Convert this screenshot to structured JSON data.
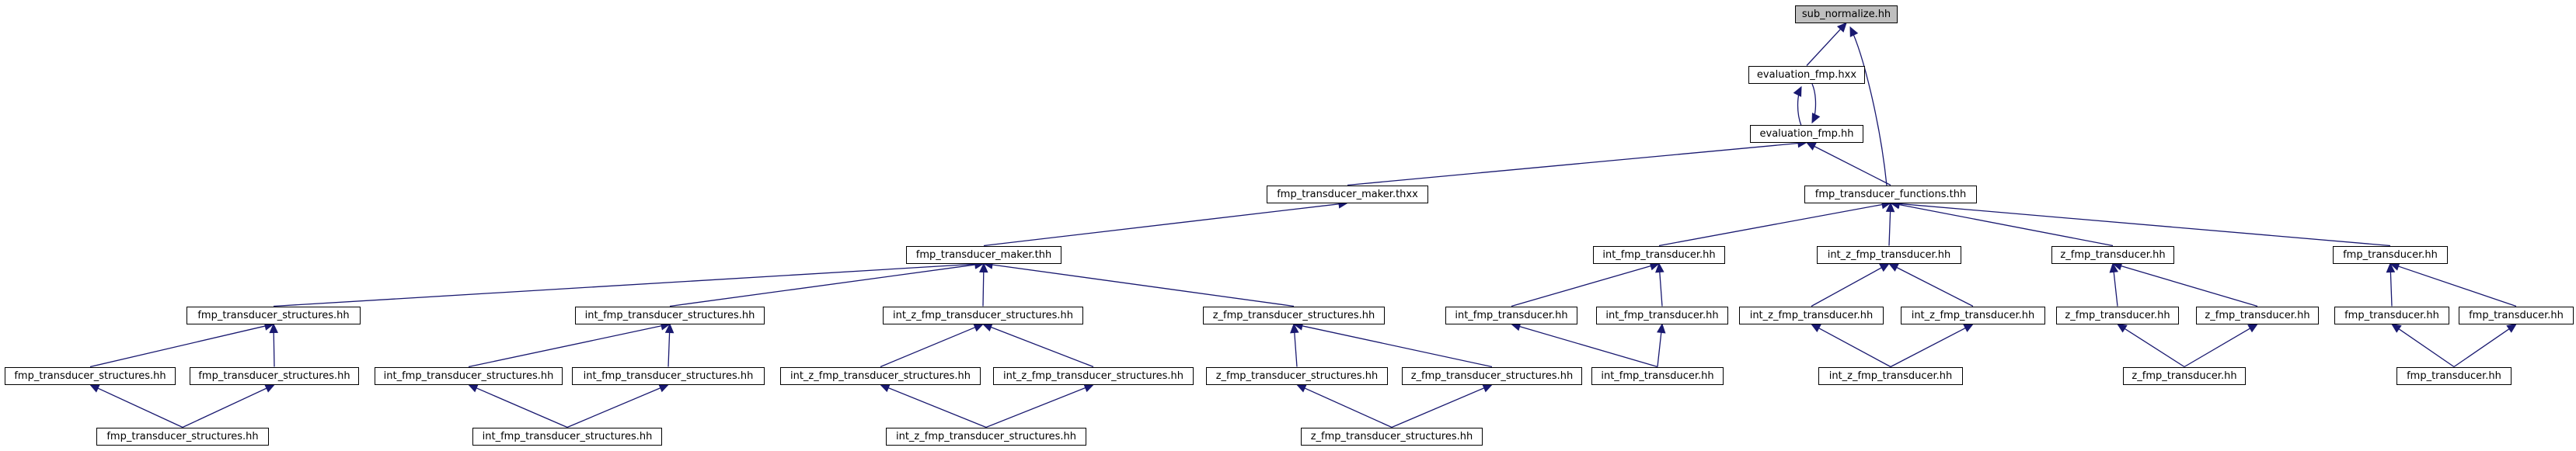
{
  "graph": {
    "edge_color": "#191970",
    "root_fill": "#bfbfbf",
    "node_fill": "#ffffff",
    "nodes": [
      {
        "id": "sub_normalize",
        "label": "sub_normalize.hh",
        "root": true
      },
      {
        "id": "evaluation_fmp_hxx",
        "label": "evaluation_fmp.hxx"
      },
      {
        "id": "evaluation_fmp_hh",
        "label": "evaluation_fmp.hh"
      },
      {
        "id": "fmp_transducer_functions",
        "label": "fmp_transducer_functions.thh"
      },
      {
        "id": "fmp_transducer_maker_thxx",
        "label": "fmp_transducer_maker.thxx"
      },
      {
        "id": "fmp_transducer_maker_thh",
        "label": "fmp_transducer_maker.thh"
      },
      {
        "id": "int_fmp_transducer_hh_1",
        "label": "int_fmp_transducer.hh"
      },
      {
        "id": "int_z_fmp_transducer_hh_1",
        "label": "int_z_fmp_transducer.hh"
      },
      {
        "id": "z_fmp_transducer_hh_1",
        "label": "z_fmp_transducer.hh"
      },
      {
        "id": "fmp_transducer_hh_1",
        "label": "fmp_transducer.hh"
      },
      {
        "id": "fmp_ts_1",
        "label": "fmp_transducer_structures.hh"
      },
      {
        "id": "int_fmp_ts_1",
        "label": "int_fmp_transducer_structures.hh"
      },
      {
        "id": "int_z_fmp_ts_1",
        "label": "int_z_fmp_transducer_structures.hh"
      },
      {
        "id": "z_fmp_ts_1",
        "label": "z_fmp_transducer_structures.hh"
      },
      {
        "id": "int_fmp_transducer_hh_2",
        "label": "int_fmp_transducer.hh"
      },
      {
        "id": "int_fmp_transducer_hh_3",
        "label": "int_fmp_transducer.hh"
      },
      {
        "id": "int_z_fmp_transducer_hh_2",
        "label": "int_z_fmp_transducer.hh"
      },
      {
        "id": "int_z_fmp_transducer_hh_3",
        "label": "int_z_fmp_transducer.hh"
      },
      {
        "id": "z_fmp_transducer_hh_2",
        "label": "z_fmp_transducer.hh"
      },
      {
        "id": "z_fmp_transducer_hh_3",
        "label": "z_fmp_transducer.hh"
      },
      {
        "id": "fmp_transducer_hh_2",
        "label": "fmp_transducer.hh"
      },
      {
        "id": "fmp_transducer_hh_3",
        "label": "fmp_transducer.hh"
      },
      {
        "id": "fmp_ts_2",
        "label": "fmp_transducer_structures.hh"
      },
      {
        "id": "fmp_ts_3",
        "label": "fmp_transducer_structures.hh"
      },
      {
        "id": "int_fmp_ts_2",
        "label": "int_fmp_transducer_structures.hh"
      },
      {
        "id": "int_fmp_ts_3",
        "label": "int_fmp_transducer_structures.hh"
      },
      {
        "id": "int_z_fmp_ts_2",
        "label": "int_z_fmp_transducer_structures.hh"
      },
      {
        "id": "int_z_fmp_ts_3",
        "label": "int_z_fmp_transducer_structures.hh"
      },
      {
        "id": "z_fmp_ts_2",
        "label": "z_fmp_transducer_structures.hh"
      },
      {
        "id": "z_fmp_ts_3",
        "label": "z_fmp_transducer_structures.hh"
      },
      {
        "id": "int_fmp_transducer_hh_4",
        "label": "int_fmp_transducer.hh"
      },
      {
        "id": "int_z_fmp_transducer_hh_4",
        "label": "int_z_fmp_transducer.hh"
      },
      {
        "id": "z_fmp_transducer_hh_4",
        "label": "z_fmp_transducer.hh"
      },
      {
        "id": "fmp_transducer_hh_4",
        "label": "fmp_transducer.hh"
      },
      {
        "id": "fmp_ts_4",
        "label": "fmp_transducer_structures.hh"
      },
      {
        "id": "int_fmp_ts_4",
        "label": "int_fmp_transducer_structures.hh"
      },
      {
        "id": "int_z_fmp_ts_4",
        "label": "int_z_fmp_transducer_structures.hh"
      },
      {
        "id": "z_fmp_ts_4",
        "label": "z_fmp_transducer_structures.hh"
      }
    ],
    "edges": [
      {
        "from": "evaluation_fmp_hxx",
        "to": "sub_normalize"
      },
      {
        "from": "fmp_transducer_functions",
        "to": "sub_normalize"
      },
      {
        "from": "evaluation_fmp_hh",
        "to": "evaluation_fmp_hxx"
      },
      {
        "from": "evaluation_fmp_hxx",
        "to": "evaluation_fmp_hh"
      },
      {
        "from": "fmp_transducer_maker_thxx",
        "to": "evaluation_fmp_hh"
      },
      {
        "from": "fmp_transducer_functions",
        "to": "evaluation_fmp_hh"
      },
      {
        "from": "fmp_transducer_maker_thh",
        "to": "fmp_transducer_maker_thxx"
      },
      {
        "from": "fmp_ts_1",
        "to": "fmp_transducer_maker_thh"
      },
      {
        "from": "int_fmp_ts_1",
        "to": "fmp_transducer_maker_thh"
      },
      {
        "from": "int_z_fmp_ts_1",
        "to": "fmp_transducer_maker_thh"
      },
      {
        "from": "z_fmp_ts_1",
        "to": "fmp_transducer_maker_thh"
      },
      {
        "from": "int_fmp_transducer_hh_1",
        "to": "fmp_transducer_functions"
      },
      {
        "from": "int_z_fmp_transducer_hh_1",
        "to": "fmp_transducer_functions"
      },
      {
        "from": "z_fmp_transducer_hh_1",
        "to": "fmp_transducer_functions"
      },
      {
        "from": "fmp_transducer_hh_1",
        "to": "fmp_transducer_functions"
      },
      {
        "from": "fmp_ts_2",
        "to": "fmp_ts_1"
      },
      {
        "from": "fmp_ts_3",
        "to": "fmp_ts_1"
      },
      {
        "from": "fmp_ts_4",
        "to": "fmp_ts_2"
      },
      {
        "from": "fmp_ts_4",
        "to": "fmp_ts_3"
      },
      {
        "from": "int_fmp_ts_2",
        "to": "int_fmp_ts_1"
      },
      {
        "from": "int_fmp_ts_3",
        "to": "int_fmp_ts_1"
      },
      {
        "from": "int_fmp_ts_4",
        "to": "int_fmp_ts_2"
      },
      {
        "from": "int_fmp_ts_4",
        "to": "int_fmp_ts_3"
      },
      {
        "from": "int_z_fmp_ts_2",
        "to": "int_z_fmp_ts_1"
      },
      {
        "from": "int_z_fmp_ts_3",
        "to": "int_z_fmp_ts_1"
      },
      {
        "from": "int_z_fmp_ts_4",
        "to": "int_z_fmp_ts_2"
      },
      {
        "from": "int_z_fmp_ts_4",
        "to": "int_z_fmp_ts_3"
      },
      {
        "from": "z_fmp_ts_2",
        "to": "z_fmp_ts_1"
      },
      {
        "from": "z_fmp_ts_3",
        "to": "z_fmp_ts_1"
      },
      {
        "from": "z_fmp_ts_4",
        "to": "z_fmp_ts_2"
      },
      {
        "from": "z_fmp_ts_4",
        "to": "z_fmp_ts_3"
      },
      {
        "from": "int_fmp_transducer_hh_2",
        "to": "int_fmp_transducer_hh_1"
      },
      {
        "from": "int_fmp_transducer_hh_3",
        "to": "int_fmp_transducer_hh_1"
      },
      {
        "from": "int_fmp_transducer_hh_4",
        "to": "int_fmp_transducer_hh_2"
      },
      {
        "from": "int_fmp_transducer_hh_4",
        "to": "int_fmp_transducer_hh_3"
      },
      {
        "from": "int_z_fmp_transducer_hh_2",
        "to": "int_z_fmp_transducer_hh_1"
      },
      {
        "from": "int_z_fmp_transducer_hh_3",
        "to": "int_z_fmp_transducer_hh_1"
      },
      {
        "from": "int_z_fmp_transducer_hh_4",
        "to": "int_z_fmp_transducer_hh_2"
      },
      {
        "from": "int_z_fmp_transducer_hh_4",
        "to": "int_z_fmp_transducer_hh_3"
      },
      {
        "from": "z_fmp_transducer_hh_2",
        "to": "z_fmp_transducer_hh_1"
      },
      {
        "from": "z_fmp_transducer_hh_3",
        "to": "z_fmp_transducer_hh_1"
      },
      {
        "from": "z_fmp_transducer_hh_4",
        "to": "z_fmp_transducer_hh_2"
      },
      {
        "from": "z_fmp_transducer_hh_4",
        "to": "z_fmp_transducer_hh_3"
      },
      {
        "from": "fmp_transducer_hh_2",
        "to": "fmp_transducer_hh_1"
      },
      {
        "from": "fmp_transducer_hh_3",
        "to": "fmp_transducer_hh_1"
      },
      {
        "from": "fmp_transducer_hh_4",
        "to": "fmp_transducer_hh_2"
      },
      {
        "from": "fmp_transducer_hh_4",
        "to": "fmp_transducer_hh_3"
      }
    ]
  }
}
